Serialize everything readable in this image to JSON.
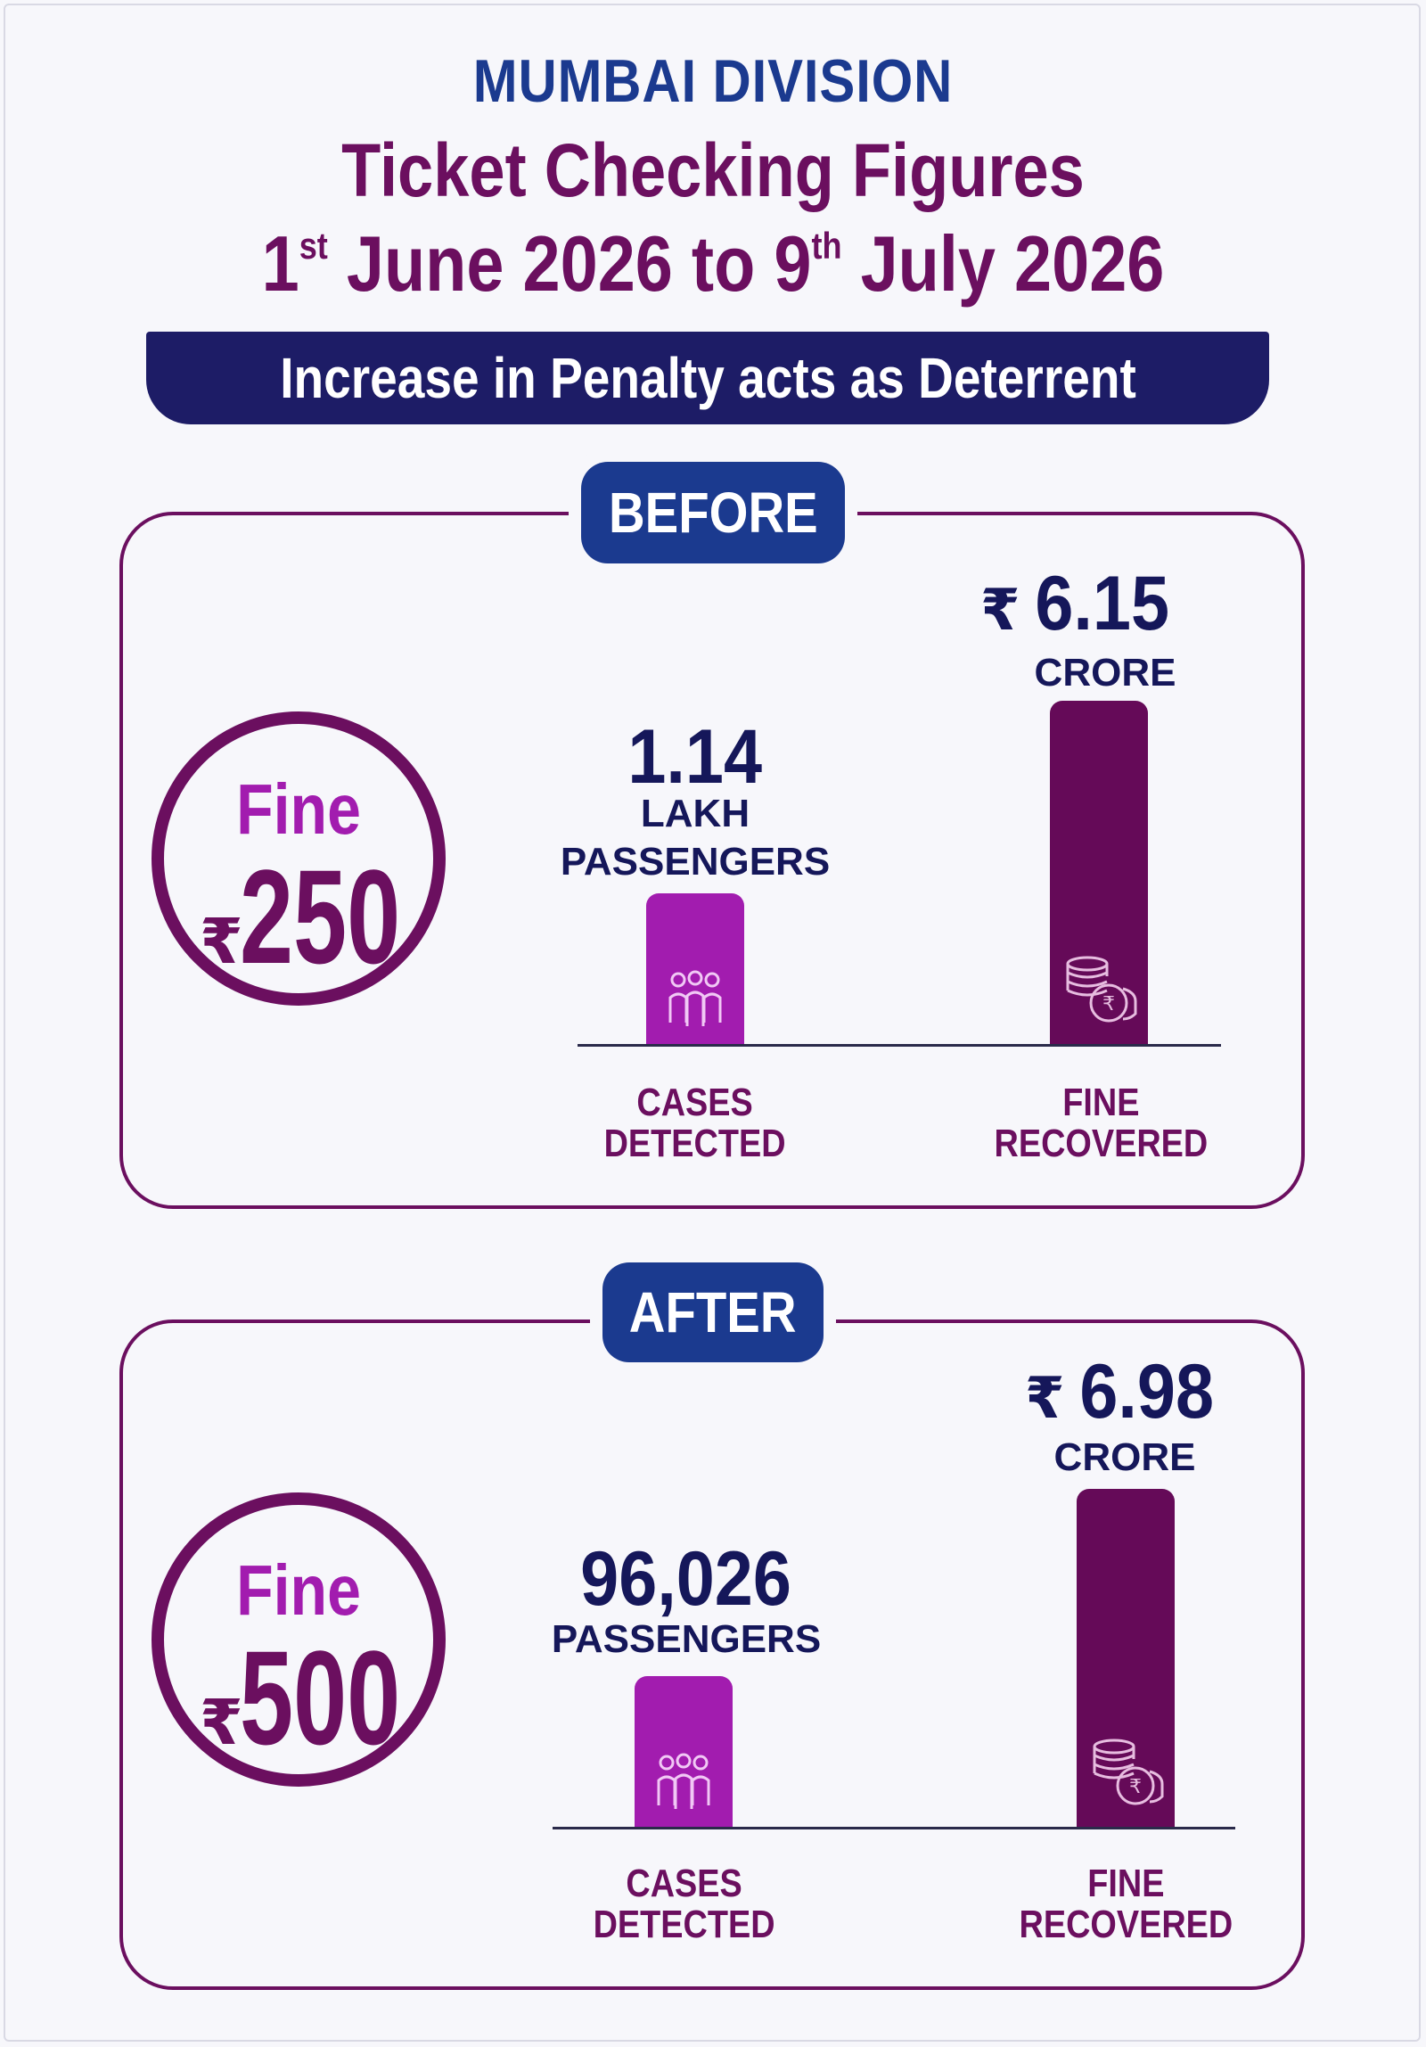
{
  "header": {
    "division": "MUMBAI DIVISION",
    "title": "Ticket Checking Figures",
    "date_start_day": "1",
    "date_start_suffix": "st",
    "date_start_rest": " June 2026 to 9",
    "date_end_suffix": "th",
    "date_end_rest": " July 2026",
    "banner": "Increase in Penalty acts as Deterrent"
  },
  "colors": {
    "navy": "#1b3a8f",
    "plum": "#6b0f5f",
    "magenta": "#a21caf",
    "dark_banner": "#1d1c66"
  },
  "icons": {
    "cases": "people-group-icon",
    "fine": "rupee-coins-icon",
    "currency": "rupee-symbol"
  },
  "chart_data": [
    {
      "type": "bar",
      "section_label": "BEFORE",
      "fine_label": "Fine",
      "fine_currency": "₹",
      "fine_amount": "250",
      "categories": [
        "CASES\nDETECTED",
        "FINE\nRECOVERED"
      ],
      "values": [
        114000,
        61500000
      ],
      "value_labels": [
        {
          "currency": "",
          "number": "1.14",
          "unit": "LAKH\nPASSENGERS"
        },
        {
          "currency": "₹",
          "number": "6.15",
          "unit": "CRORE"
        }
      ]
    },
    {
      "type": "bar",
      "section_label": "AFTER",
      "fine_label": "Fine",
      "fine_currency": "₹",
      "fine_amount": "500",
      "categories": [
        "CASES\nDETECTED",
        "FINE\nRECOVERED"
      ],
      "values": [
        96026,
        69800000
      ],
      "value_labels": [
        {
          "currency": "",
          "number": "96,026",
          "unit": "PASSENGERS"
        },
        {
          "currency": "₹",
          "number": "6.98",
          "unit": "CRORE"
        }
      ]
    }
  ]
}
